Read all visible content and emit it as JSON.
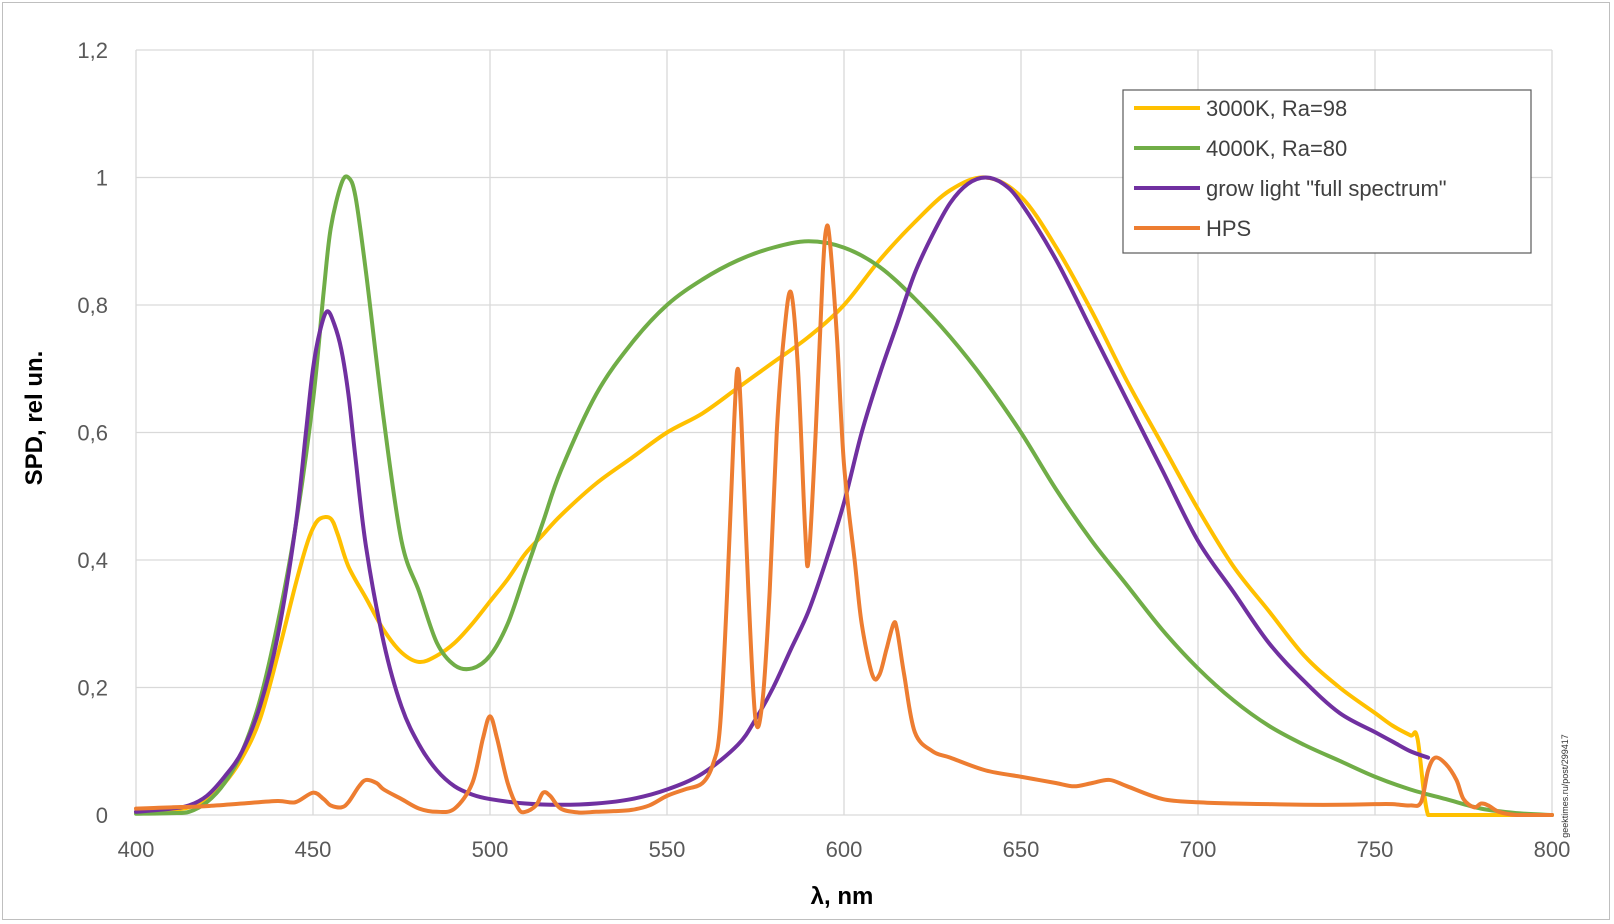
{
  "chart_data": {
    "type": "line",
    "title": "",
    "xlabel": "λ, nm",
    "ylabel": "SPD, rel un.",
    "xlim": [
      400,
      800
    ],
    "ylim": [
      0,
      1.2
    ],
    "xticks": [
      {
        "value": 400,
        "label": "400"
      },
      {
        "value": 450,
        "label": "450"
      },
      {
        "value": 500,
        "label": "500"
      },
      {
        "value": 550,
        "label": "550"
      },
      {
        "value": 600,
        "label": "600"
      },
      {
        "value": 650,
        "label": "650"
      },
      {
        "value": 700,
        "label": "700"
      },
      {
        "value": 750,
        "label": "750"
      },
      {
        "value": 800,
        "label": "800"
      }
    ],
    "yticks": [
      {
        "value": 0,
        "label": "0"
      },
      {
        "value": 0.2,
        "label": "0,2"
      },
      {
        "value": 0.4,
        "label": "0,4"
      },
      {
        "value": 0.6,
        "label": "0,6"
      },
      {
        "value": 0.8,
        "label": "0,8"
      },
      {
        "value": 1.0,
        "label": "1"
      },
      {
        "value": 1.2,
        "label": "1,2"
      }
    ],
    "grid": true,
    "legend_position": "top-right",
    "annotation": "geektimes.ru/post/299417",
    "series": [
      {
        "name": "3000K, Ra=98",
        "color": "#FFC000",
        "x": [
          400,
          410,
          415,
          420,
          425,
          430,
          435,
          440,
          445,
          448,
          450,
          452,
          455,
          457,
          460,
          465,
          470,
          475,
          480,
          485,
          490,
          495,
          500,
          505,
          510,
          515,
          520,
          530,
          540,
          550,
          560,
          570,
          580,
          590,
          600,
          610,
          620,
          630,
          640,
          650,
          660,
          670,
          680,
          690,
          700,
          710,
          720,
          730,
          740,
          750,
          755,
          760,
          762,
          765,
          770,
          780,
          790,
          800
        ],
        "y": [
          0.005,
          0.008,
          0.012,
          0.025,
          0.05,
          0.09,
          0.15,
          0.25,
          0.36,
          0.42,
          0.45,
          0.465,
          0.465,
          0.44,
          0.39,
          0.34,
          0.29,
          0.255,
          0.24,
          0.25,
          0.27,
          0.3,
          0.335,
          0.37,
          0.41,
          0.44,
          0.47,
          0.52,
          0.56,
          0.6,
          0.63,
          0.67,
          0.71,
          0.75,
          0.8,
          0.87,
          0.93,
          0.98,
          1.0,
          0.97,
          0.89,
          0.79,
          0.68,
          0.58,
          0.48,
          0.39,
          0.32,
          0.25,
          0.2,
          0.16,
          0.14,
          0.125,
          0.12,
          0.0,
          0.0,
          0.0,
          0.0,
          0.0
        ]
      },
      {
        "name": "4000K, Ra=80",
        "color": "#70AD47",
        "x": [
          400,
          410,
          415,
          420,
          425,
          430,
          435,
          440,
          445,
          450,
          453,
          455,
          458,
          460,
          462,
          465,
          470,
          475,
          480,
          485,
          490,
          495,
          500,
          505,
          510,
          515,
          520,
          530,
          540,
          550,
          560,
          570,
          580,
          590,
          600,
          610,
          620,
          630,
          640,
          650,
          660,
          670,
          680,
          690,
          700,
          710,
          720,
          730,
          740,
          750,
          760,
          770,
          780,
          790,
          800
        ],
        "y": [
          0.002,
          0.003,
          0.005,
          0.02,
          0.05,
          0.1,
          0.18,
          0.3,
          0.45,
          0.65,
          0.82,
          0.92,
          0.99,
          1.0,
          0.97,
          0.85,
          0.62,
          0.43,
          0.35,
          0.27,
          0.235,
          0.23,
          0.25,
          0.3,
          0.38,
          0.46,
          0.54,
          0.66,
          0.74,
          0.8,
          0.84,
          0.87,
          0.89,
          0.9,
          0.89,
          0.86,
          0.81,
          0.75,
          0.68,
          0.6,
          0.51,
          0.43,
          0.36,
          0.29,
          0.23,
          0.18,
          0.14,
          0.11,
          0.085,
          0.06,
          0.04,
          0.025,
          0.01,
          0.003,
          0.0
        ]
      },
      {
        "name": "grow light \"full spectrum\"",
        "color": "#7030A0",
        "x": [
          400,
          410,
          415,
          420,
          425,
          430,
          435,
          440,
          445,
          448,
          450,
          452,
          454,
          456,
          458,
          460,
          462,
          465,
          470,
          475,
          480,
          485,
          490,
          495,
          500,
          510,
          520,
          530,
          540,
          550,
          560,
          570,
          575,
          580,
          585,
          590,
          595,
          600,
          605,
          610,
          615,
          620,
          625,
          630,
          635,
          640,
          645,
          650,
          660,
          670,
          680,
          690,
          700,
          710,
          720,
          730,
          740,
          750,
          755,
          760,
          765
        ],
        "y": [
          0.005,
          0.01,
          0.015,
          0.03,
          0.06,
          0.1,
          0.17,
          0.28,
          0.45,
          0.6,
          0.7,
          0.76,
          0.79,
          0.77,
          0.73,
          0.66,
          0.56,
          0.42,
          0.27,
          0.17,
          0.11,
          0.07,
          0.045,
          0.032,
          0.025,
          0.018,
          0.016,
          0.018,
          0.025,
          0.04,
          0.065,
          0.11,
          0.15,
          0.2,
          0.26,
          0.32,
          0.4,
          0.49,
          0.6,
          0.69,
          0.77,
          0.85,
          0.91,
          0.96,
          0.99,
          1.0,
          0.99,
          0.96,
          0.87,
          0.76,
          0.65,
          0.54,
          0.43,
          0.35,
          0.27,
          0.21,
          0.16,
          0.13,
          0.115,
          0.1,
          0.09
        ]
      },
      {
        "name": "HPS",
        "color": "#ED7D31",
        "x": [
          400,
          405,
          410,
          420,
          430,
          440,
          445,
          450,
          453,
          455,
          458,
          460,
          463,
          465,
          468,
          470,
          475,
          480,
          485,
          490,
          495,
          498,
          500,
          502,
          505,
          508,
          510,
          513,
          515,
          517,
          520,
          525,
          530,
          535,
          540,
          545,
          550,
          555,
          560,
          563,
          565,
          567,
          569,
          570,
          571,
          573,
          575,
          577,
          579,
          581,
          583,
          585,
          587,
          589,
          590,
          592,
          594,
          595,
          596,
          598,
          600,
          603,
          605,
          608,
          610,
          612,
          614,
          615,
          617,
          620,
          625,
          630,
          640,
          650,
          655,
          660,
          665,
          670,
          675,
          680,
          690,
          700,
          710,
          720,
          730,
          740,
          750,
          755,
          760,
          763,
          765,
          767,
          770,
          773,
          775,
          778,
          780,
          782,
          785,
          790,
          800
        ],
        "y": [
          0.01,
          0.011,
          0.012,
          0.014,
          0.018,
          0.022,
          0.02,
          0.035,
          0.025,
          0.015,
          0.012,
          0.02,
          0.045,
          0.055,
          0.05,
          0.04,
          0.025,
          0.01,
          0.005,
          0.01,
          0.05,
          0.12,
          0.155,
          0.12,
          0.05,
          0.01,
          0.005,
          0.015,
          0.035,
          0.03,
          0.01,
          0.004,
          0.005,
          0.006,
          0.008,
          0.015,
          0.03,
          0.04,
          0.05,
          0.08,
          0.14,
          0.35,
          0.62,
          0.7,
          0.62,
          0.35,
          0.15,
          0.18,
          0.35,
          0.6,
          0.75,
          0.82,
          0.7,
          0.45,
          0.4,
          0.6,
          0.85,
          0.92,
          0.9,
          0.75,
          0.55,
          0.4,
          0.3,
          0.22,
          0.22,
          0.26,
          0.3,
          0.29,
          0.22,
          0.13,
          0.1,
          0.09,
          0.07,
          0.06,
          0.055,
          0.05,
          0.045,
          0.05,
          0.055,
          0.045,
          0.025,
          0.02,
          0.018,
          0.017,
          0.016,
          0.016,
          0.017,
          0.017,
          0.015,
          0.02,
          0.07,
          0.09,
          0.08,
          0.055,
          0.025,
          0.012,
          0.018,
          0.015,
          0.005,
          0.0,
          0.0
        ]
      }
    ]
  }
}
